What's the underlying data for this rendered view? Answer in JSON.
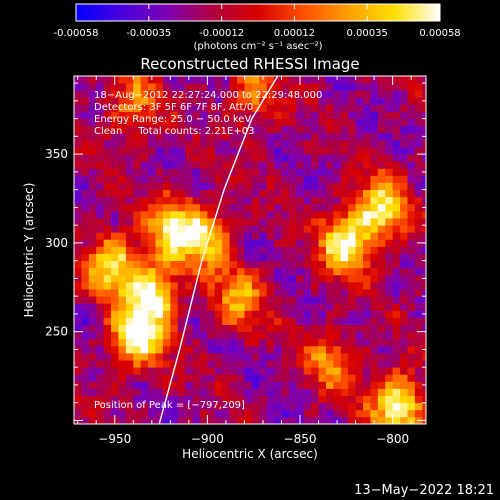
{
  "colorbar": {
    "tick_labels": [
      "-0.00058",
      "-0.00035",
      "-0.00012",
      "0.00012",
      "0.00035",
      "0.00058"
    ],
    "units_line": "(photons cm⁻² s⁻¹ asec⁻²)",
    "stops": [
      "#0000ff",
      "#4a00e0",
      "#7d00b4",
      "#b00040",
      "#d80000",
      "#ff5000",
      "#ffa000",
      "#ffe000",
      "#ffffff"
    ],
    "range": [
      -0.00058,
      0.00058
    ]
  },
  "chart_data": {
    "type": "heatmap",
    "title": "Reconstructed RHESSI Image",
    "xlabel": "Heliocentric X (arcsec)",
    "ylabel": "Heliocentric Y (arcsec)",
    "xlim": [
      -972,
      -782
    ],
    "ylim": [
      198,
      394
    ],
    "xticks": [
      -950,
      -900,
      -850,
      -800
    ],
    "yticks": [
      250,
      300,
      350
    ],
    "xtick_labels": [
      "−950",
      "−900",
      "−850",
      "−800"
    ],
    "ytick_labels": [
      "250",
      "300",
      "350"
    ],
    "info_lines": [
      "18−Aug−2012 22:27:24.000 to 22:29:48.000",
      "Detectors: 3F 5F 6F 7F 8F, Att/0",
      "Energy Range: 25.0 − 50.0 keV",
      "Clean     Total counts: 2.21E+03"
    ],
    "peak_label": "Position of Peak = [−797,209]",
    "peak_position": [
      -797,
      209
    ],
    "limb_curve": [
      [
        -926,
        198
      ],
      [
        -915,
        240
      ],
      [
        -903,
        290
      ],
      [
        -891,
        330
      ],
      [
        -876,
        370
      ],
      [
        -862,
        394
      ]
    ],
    "bright_regions": [
      {
        "x": -938,
        "y": 247,
        "peak": 0.00058
      },
      {
        "x": -929,
        "y": 272,
        "peak": 0.00048
      },
      {
        "x": -951,
        "y": 288,
        "peak": 0.00045
      },
      {
        "x": -918,
        "y": 308,
        "peak": 0.0004
      },
      {
        "x": -900,
        "y": 303,
        "peak": 0.00033
      },
      {
        "x": -883,
        "y": 268,
        "peak": 0.00026
      },
      {
        "x": -825,
        "y": 300,
        "peak": 0.00052
      },
      {
        "x": -806,
        "y": 319,
        "peak": 0.00048
      },
      {
        "x": -797,
        "y": 209,
        "peak": 0.00058
      },
      {
        "x": -833,
        "y": 233,
        "peak": 0.00022
      },
      {
        "x": -875,
        "y": 383,
        "peak": 0.00018
      },
      {
        "x": -940,
        "y": 378,
        "peak": 0.00022
      }
    ]
  },
  "timestamp": "13−May−2022 18:21"
}
